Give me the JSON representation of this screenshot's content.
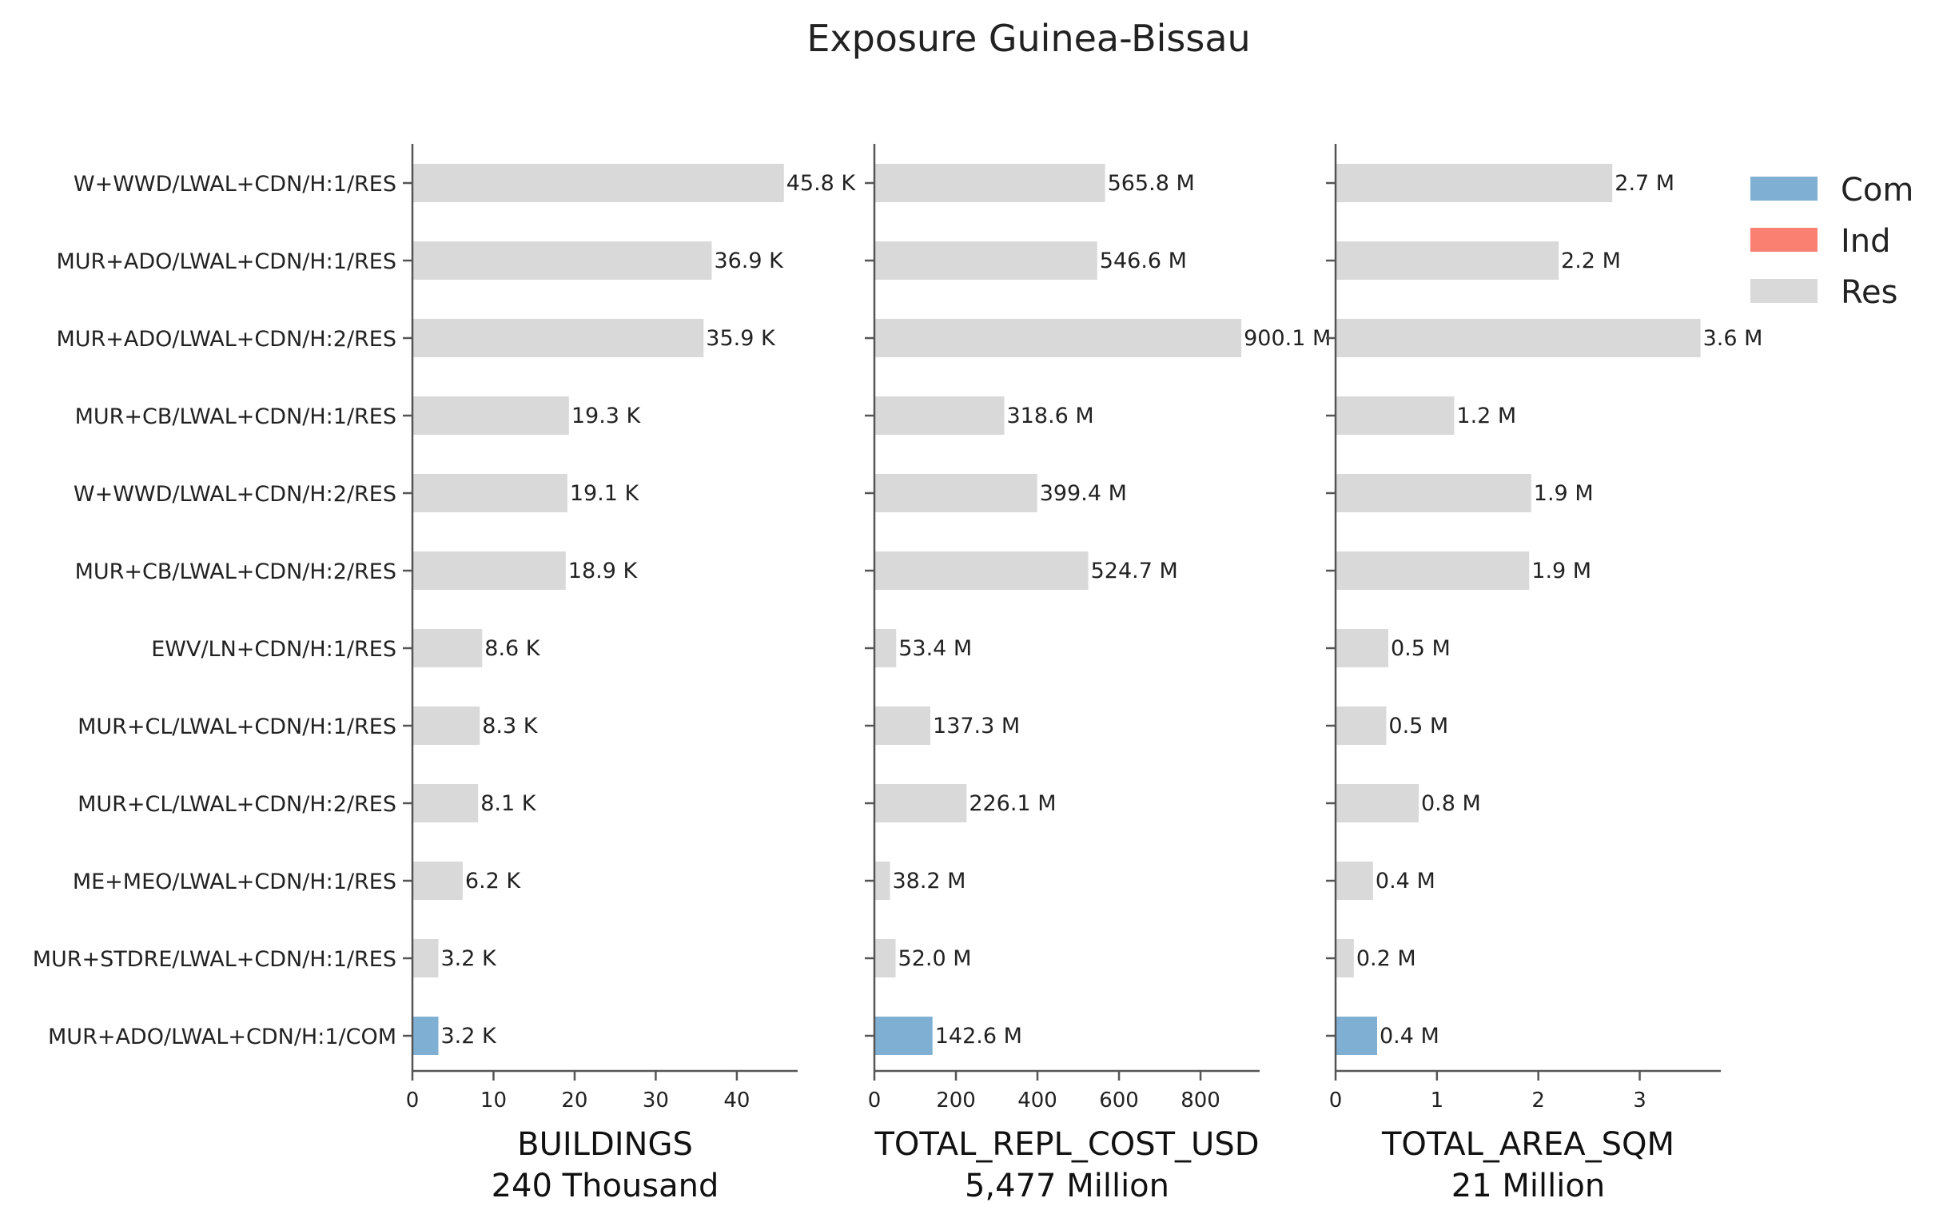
{
  "chart_data": {
    "type": "bar",
    "orientation": "horizontal",
    "title": "Exposure Guinea-Bissau",
    "categories": [
      "W+WWD/LWAL+CDN/H:1/RES",
      "MUR+ADO/LWAL+CDN/H:1/RES",
      "MUR+ADO/LWAL+CDN/H:2/RES",
      "MUR+CB/LWAL+CDN/H:1/RES",
      "W+WWD/LWAL+CDN/H:2/RES",
      "MUR+CB/LWAL+CDN/H:2/RES",
      "EWV/LN+CDN/H:1/RES",
      "MUR+CL/LWAL+CDN/H:1/RES",
      "MUR+CL/LWAL+CDN/H:2/RES",
      "ME+MEO/LWAL+CDN/H:1/RES",
      "MUR+STDRE/LWAL+CDN/H:1/RES",
      "MUR+ADO/LWAL+CDN/H:1/COM"
    ],
    "occupancy": [
      "Res",
      "Res",
      "Res",
      "Res",
      "Res",
      "Res",
      "Res",
      "Res",
      "Res",
      "Res",
      "Res",
      "Com"
    ],
    "legend": {
      "placement": "top-right",
      "entries": [
        {
          "name": "Com",
          "color": "#7fb0d3"
        },
        {
          "name": "Ind",
          "color": "#fa8072"
        },
        {
          "name": "Res",
          "color": "#d9d9d9"
        }
      ]
    },
    "panels": [
      {
        "xlabel": "BUILDINGS",
        "subtitle": "240 Thousand",
        "xlim": [
          0,
          47.5
        ],
        "ticks": [
          0,
          10,
          20,
          30,
          40
        ],
        "tick_labels": [
          "0",
          "10",
          "20",
          "30",
          "40"
        ],
        "values": [
          45.8,
          36.9,
          35.9,
          19.3,
          19.1,
          18.9,
          8.6,
          8.3,
          8.1,
          6.2,
          3.2,
          3.2
        ],
        "labels": [
          "45.8 K",
          "36.9 K",
          "35.9 K",
          "19.3 K",
          "19.1 K",
          "18.9 K",
          "8.6 K",
          "8.3 K",
          "8.1 K",
          "6.2 K",
          "3.2 K",
          "3.2 K"
        ]
      },
      {
        "xlabel": "TOTAL_REPL_COST_USD",
        "subtitle": "5,477 Million",
        "xlim": [
          0,
          945
        ],
        "ticks": [
          0,
          200,
          400,
          600,
          800
        ],
        "tick_labels": [
          "0",
          "200",
          "400",
          "600",
          "800"
        ],
        "values": [
          565.8,
          546.6,
          900.1,
          318.6,
          399.4,
          524.7,
          53.4,
          137.3,
          226.1,
          38.2,
          52.0,
          142.6
        ],
        "labels": [
          "565.8 M",
          "546.6 M",
          "900.1 M",
          "318.6 M",
          "399.4 M",
          "524.7 M",
          "53.4 M",
          "137.3 M",
          "226.1 M",
          "38.2 M",
          "52.0 M",
          "142.6 M"
        ]
      },
      {
        "xlabel": "TOTAL_AREA_SQM",
        "subtitle": "21 Million",
        "xlim": [
          0,
          3.8
        ],
        "ticks": [
          0,
          1,
          2,
          3
        ],
        "tick_labels": [
          "0",
          "1",
          "2",
          "3"
        ],
        "values": [
          2.73,
          2.2,
          3.6,
          1.17,
          1.93,
          1.91,
          0.52,
          0.5,
          0.82,
          0.37,
          0.18,
          0.41
        ],
        "labels": [
          "2.7 M",
          "2.2 M",
          "3.6 M",
          "1.2 M",
          "1.9 M",
          "1.9 M",
          "0.5 M",
          "0.5 M",
          "0.8 M",
          "0.4 M",
          "0.2 M",
          "0.4 M"
        ]
      }
    ]
  }
}
